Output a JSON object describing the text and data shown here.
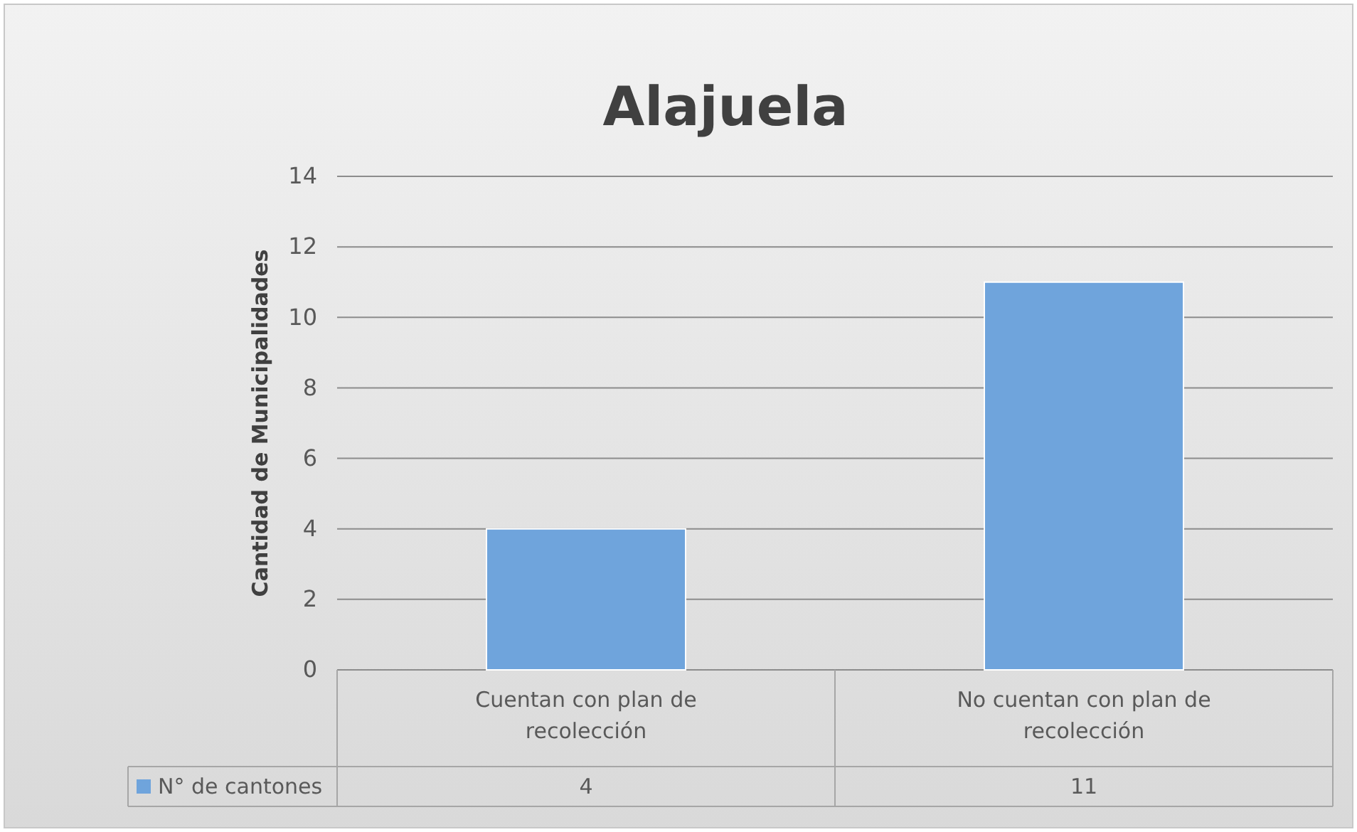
{
  "chart_data": {
    "type": "bar",
    "title": "Alajuela",
    "ylabel": "Cantidad de Municipalidades",
    "categories": [
      "Cuentan con plan de recolección",
      "No cuentan con plan de recolección"
    ],
    "series": [
      {
        "name": "N° de cantones",
        "color": "#6fa4dc",
        "values": [
          4,
          11
        ]
      }
    ],
    "ylim": [
      0,
      14
    ],
    "yticks": [
      0,
      2,
      4,
      6,
      8,
      10,
      12,
      14
    ],
    "grid": "y",
    "legend": "bottom",
    "data_labels": true
  }
}
